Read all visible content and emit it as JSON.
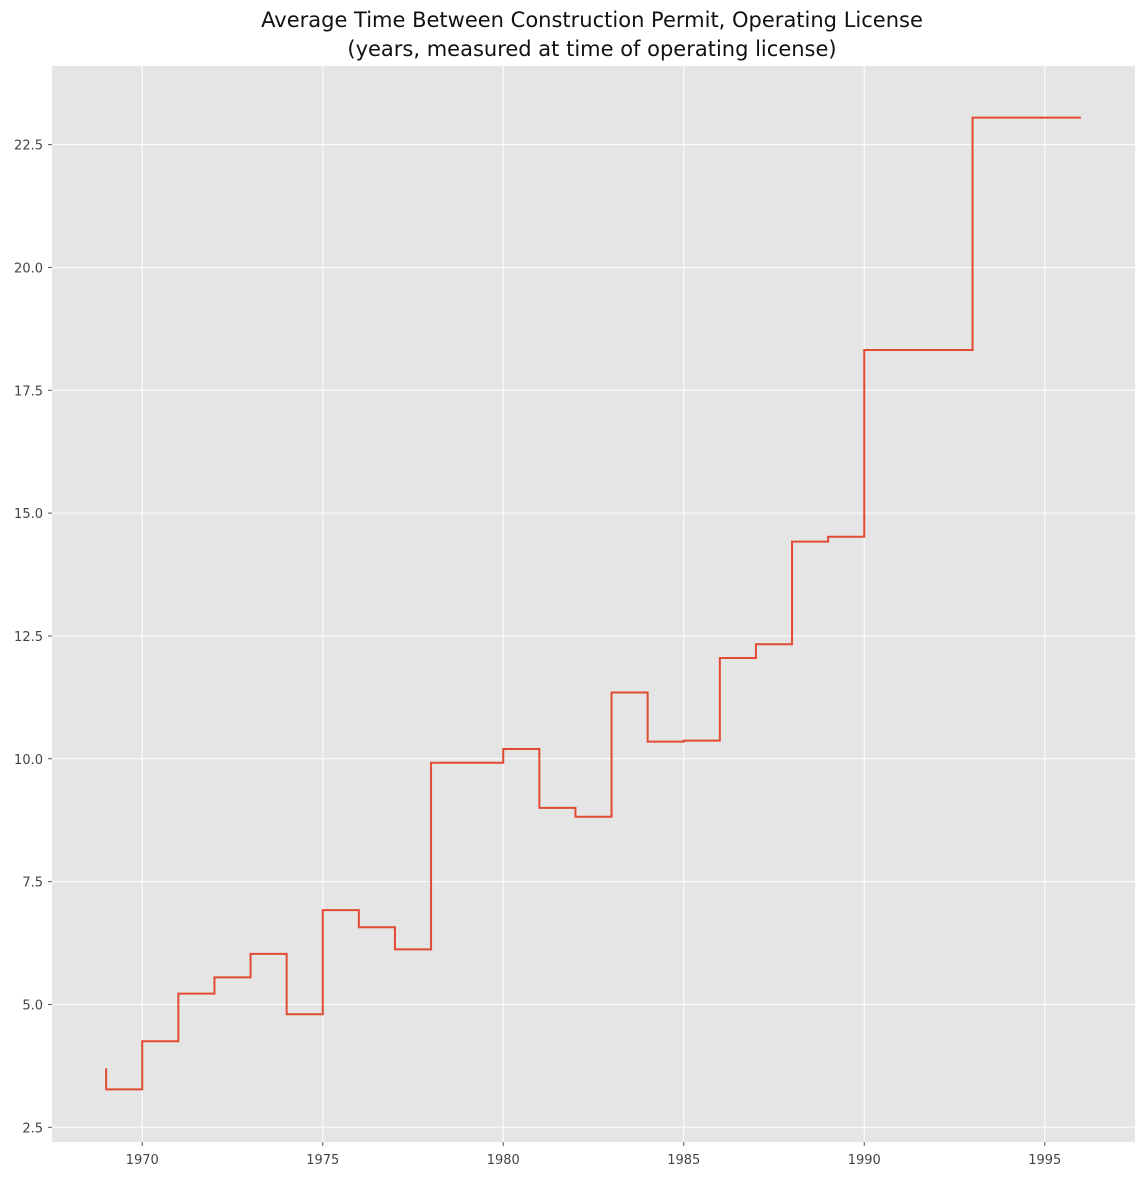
{
  "chart_data": {
    "type": "line",
    "drawstyle": "steps-post",
    "title": "Average Time Between Construction Permit, Operating License",
    "subtitle": "(years, measured at time of operating license)",
    "xlabel": "",
    "ylabel": "",
    "xlim": [
      1967.5,
      1997.5
    ],
    "ylim": [
      2.2,
      24.1
    ],
    "grid": true,
    "background_color": "#e5e5e5",
    "grid_color": "#ffffff",
    "line_color": "#e24a33",
    "x_ticks": [
      1970,
      1975,
      1980,
      1985,
      1990,
      1995
    ],
    "y_ticks": [
      2.5,
      5.0,
      7.5,
      10.0,
      12.5,
      15.0,
      17.5,
      20.0,
      22.5
    ],
    "x_tick_labels": [
      "1970",
      "1975",
      "1980",
      "1985",
      "1990",
      "1995"
    ],
    "y_tick_labels": [
      "2.5",
      "5.0",
      "7.5",
      "10.0",
      "12.5",
      "15.0",
      "17.5",
      "20.0",
      "22.5"
    ],
    "series": [
      {
        "x": [
          1969,
          1969,
          1970,
          1971,
          1972,
          1973,
          1974,
          1975,
          1976,
          1977,
          1978,
          1980,
          1981,
          1982,
          1983,
          1984,
          1985,
          1986,
          1987,
          1988,
          1989,
          1990,
          1993,
          1996
        ],
        "y": [
          3.7,
          3.27,
          4.25,
          5.22,
          5.55,
          6.03,
          4.8,
          6.92,
          6.57,
          6.12,
          9.92,
          10.2,
          9.0,
          8.82,
          11.35,
          10.35,
          10.37,
          12.05,
          12.33,
          14.42,
          14.52,
          18.32,
          23.05,
          23.05
        ]
      }
    ]
  }
}
